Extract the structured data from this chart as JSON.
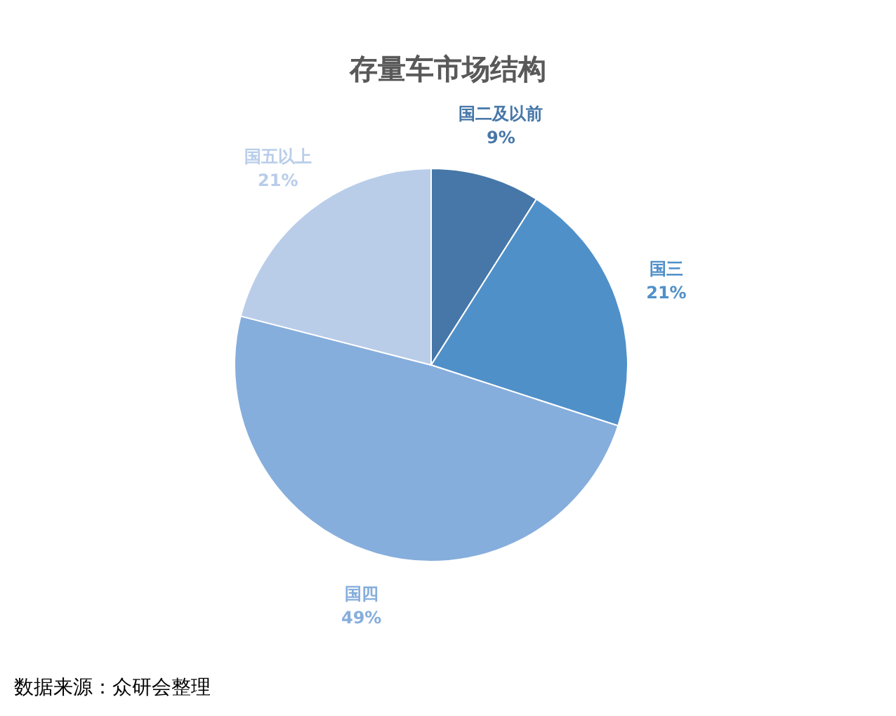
{
  "chart_data": {
    "type": "pie",
    "title": "存量车市场结构",
    "categories": [
      "国二及以前",
      "国三",
      "国四",
      "国五以上"
    ],
    "values": [
      9,
      21,
      49,
      21
    ],
    "colors": [
      "#4677a8",
      "#5090c9",
      "#86aedc",
      "#b9cde9"
    ],
    "value_labels": [
      "9%",
      "21%",
      "49%",
      "21%"
    ],
    "annotations": [
      "数据来源：众研会整理"
    ]
  }
}
